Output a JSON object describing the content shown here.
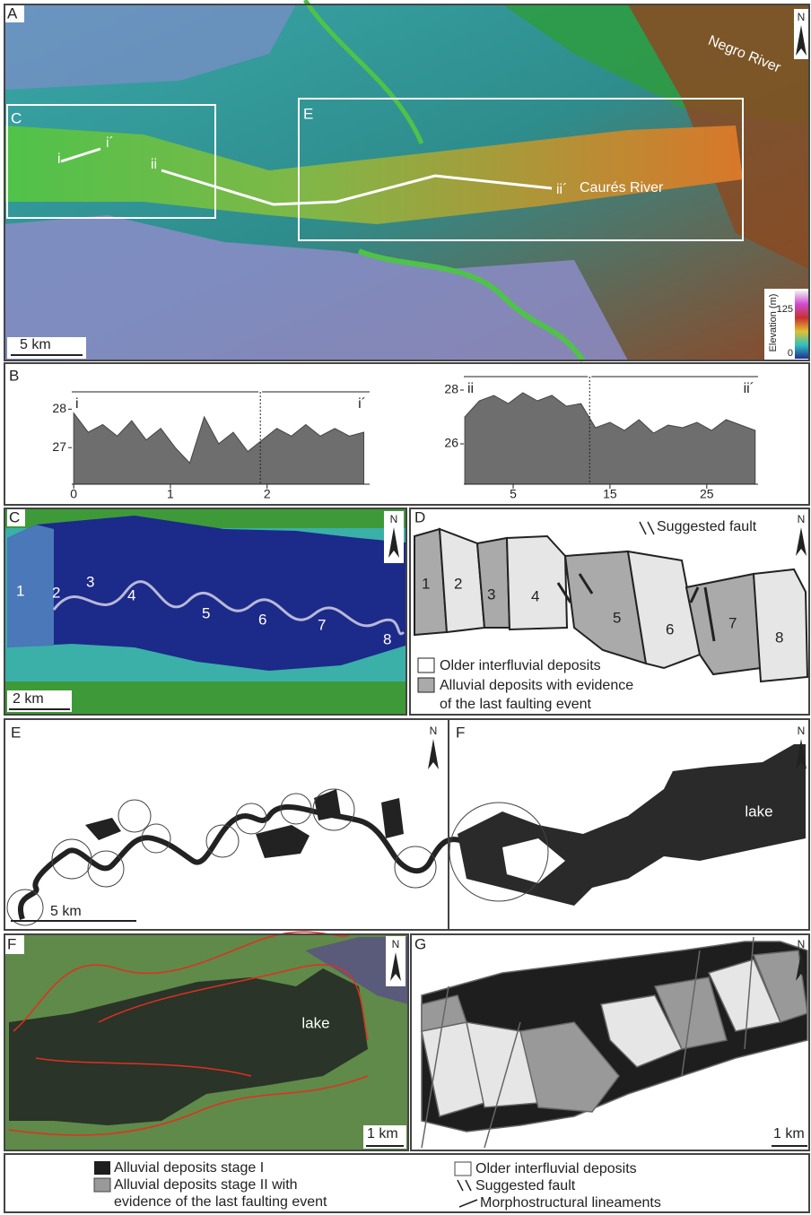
{
  "panels": {
    "a": {
      "label": "A",
      "box_c": "C",
      "box_e": "E",
      "i": "i",
      "i_prime": "i´",
      "ii": "ii",
      "ii_prime": "ii´",
      "caures_river": "Caurés River",
      "negro_river": "Negro River",
      "north": "N",
      "scale": "5 km",
      "elevation_title": "Elevation (m)",
      "elevation_ticks": [
        125,
        0
      ]
    },
    "b": {
      "label": "B"
    },
    "c": {
      "label": "C",
      "units": [
        1,
        2,
        3,
        4,
        5,
        6,
        7,
        8
      ],
      "north": "N",
      "scale": "2 km"
    },
    "d": {
      "label": "D",
      "units": [
        1,
        2,
        3,
        4,
        5,
        6,
        7,
        8
      ],
      "north": "N",
      "fault_legend": "Suggested fault",
      "legend": [
        "Older interfluvial deposits",
        "Alluvial deposits with evidence",
        "of the last faulting event"
      ]
    },
    "e": {
      "label": "E",
      "north": "N",
      "scale": "5 km"
    },
    "f_map": {
      "label": "F",
      "north": "N",
      "lake": "lake"
    },
    "f_photo": {
      "label": "F",
      "north": "N",
      "lake": "lake",
      "scale": "1 km"
    },
    "g": {
      "label": "G",
      "north": "N",
      "scale": "1 km"
    },
    "legend": {
      "stage_1": "Alluvial deposits stage I",
      "stage_2": [
        "Alluvial deposits stage II with",
        "evidence of the last faulting event"
      ],
      "older": "Older interfluvial deposits",
      "fault": "Suggested fault",
      "lineaments": "Morphostructural lineaments"
    }
  },
  "chart_data": [
    {
      "type": "area",
      "segment_labels": [
        "i",
        "i´"
      ],
      "color": "#6e6e6e",
      "x": [
        0,
        0.15,
        0.3,
        0.45,
        0.6,
        0.75,
        0.9,
        1.05,
        1.2,
        1.35,
        1.5,
        1.65,
        1.8,
        1.95,
        2.1,
        2.25,
        2.4,
        2.55,
        2.7,
        2.85,
        3.0
      ],
      "values": [
        27.9,
        27.4,
        27.6,
        27.3,
        27.7,
        27.2,
        27.5,
        27.0,
        26.6,
        27.8,
        27.1,
        27.4,
        26.9,
        27.2,
        27.5,
        27.3,
        27.6,
        27.3,
        27.5,
        27.3,
        27.4
      ],
      "divider": 1.93,
      "xlim": [
        -0.02,
        3.06
      ],
      "ylim": [
        26.05,
        28.45
      ],
      "xticks": [
        0,
        1,
        2
      ],
      "yticks": [
        27,
        28
      ]
    },
    {
      "type": "area",
      "segment_labels": [
        "ii",
        "ii´"
      ],
      "color": "#6e6e6e",
      "x": [
        0,
        1.5,
        3,
        4.5,
        6,
        7.5,
        9,
        10.5,
        12,
        13.5,
        15,
        16.5,
        18,
        19.5,
        21,
        22.5,
        24,
        25.5,
        27,
        28.5,
        30
      ],
      "values": [
        27.0,
        27.6,
        27.8,
        27.5,
        27.9,
        27.6,
        27.8,
        27.4,
        27.5,
        26.6,
        26.8,
        26.5,
        26.9,
        26.4,
        26.7,
        26.6,
        26.8,
        26.5,
        26.9,
        26.7,
        26.5
      ],
      "divider": 12.9,
      "xlim": [
        -0.1,
        30.3
      ],
      "ylim": [
        24.5,
        28.5
      ],
      "xticks": [
        5,
        15,
        25
      ],
      "yticks": [
        26,
        28
      ]
    }
  ]
}
